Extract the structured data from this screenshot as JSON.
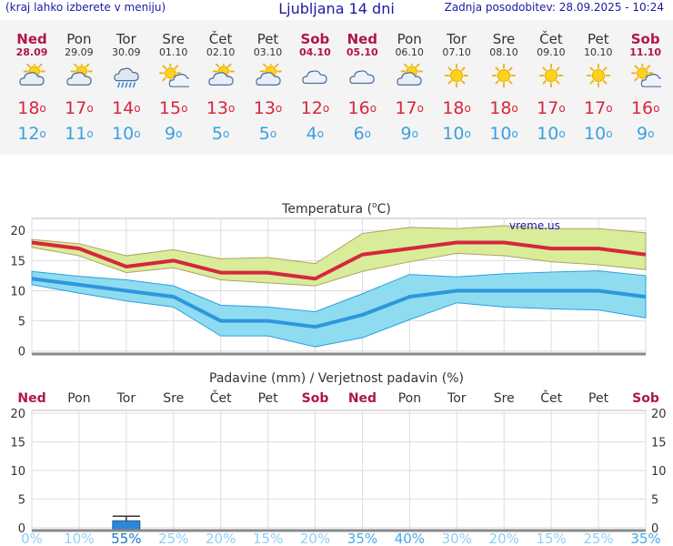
{
  "header": {
    "menu_hint": "(kraj lahko izberete v meniju)",
    "title": "Ljubljana 14 dni",
    "updated": "Zadnja posodobitev: 28.09.2025 - 10:24"
  },
  "days": [
    {
      "name": "Ned",
      "date": "28.09",
      "weekend": true,
      "icon": "partly-cloudy-icon",
      "max": "18",
      "min": "12"
    },
    {
      "name": "Pon",
      "date": "29.09",
      "weekend": false,
      "icon": "partly-cloudy-icon",
      "max": "17",
      "min": "11"
    },
    {
      "name": "Tor",
      "date": "30.09",
      "weekend": false,
      "icon": "rain-icon",
      "max": "14",
      "min": "10"
    },
    {
      "name": "Sre",
      "date": "01.10",
      "weekend": false,
      "icon": "mostly-sunny-icon",
      "max": "15",
      "min": "9"
    },
    {
      "name": "Čet",
      "date": "02.10",
      "weekend": false,
      "icon": "partly-cloudy-icon",
      "max": "13",
      "min": "5"
    },
    {
      "name": "Pet",
      "date": "03.10",
      "weekend": false,
      "icon": "partly-cloudy-icon",
      "max": "13",
      "min": "5"
    },
    {
      "name": "Sob",
      "date": "04.10",
      "weekend": true,
      "icon": "cloudy-icon",
      "max": "12",
      "min": "4"
    },
    {
      "name": "Ned",
      "date": "05.10",
      "weekend": true,
      "icon": "cloudy-icon",
      "max": "16",
      "min": "6"
    },
    {
      "name": "Pon",
      "date": "06.10",
      "weekend": false,
      "icon": "partly-cloudy-icon",
      "max": "17",
      "min": "9"
    },
    {
      "name": "Tor",
      "date": "07.10",
      "weekend": false,
      "icon": "sunny-icon",
      "max": "18",
      "min": "10"
    },
    {
      "name": "Sre",
      "date": "08.10",
      "weekend": false,
      "icon": "sunny-icon",
      "max": "18",
      "min": "10"
    },
    {
      "name": "Čet",
      "date": "09.10",
      "weekend": false,
      "icon": "sunny-icon",
      "max": "17",
      "min": "10"
    },
    {
      "name": "Pet",
      "date": "10.10",
      "weekend": false,
      "icon": "sunny-icon",
      "max": "17",
      "min": "10"
    },
    {
      "name": "Sob",
      "date": "11.10",
      "weekend": true,
      "icon": "mostly-sunny-icon",
      "max": "16",
      "min": "9"
    }
  ],
  "degree_symbol": "o",
  "colors": {
    "max": "#d7263d",
    "min": "#3aa0e0",
    "weekend": "#b0154c",
    "max_band": "#d8ec9a",
    "min_band": "#8fdcf0",
    "precip_bar": "#2f86d8"
  },
  "chart_data": [
    {
      "type": "line",
      "title": "Temperatura (°C)",
      "title_main": "Temperatura (",
      "title_unit": "C)",
      "watermark": "vreme.us",
      "x": [
        "28.09",
        "29.09",
        "30.09",
        "01.10",
        "02.10",
        "03.10",
        "04.10",
        "05.10",
        "06.10",
        "07.10",
        "08.10",
        "09.10",
        "10.10",
        "11.10"
      ],
      "yticks": [
        0,
        5,
        10,
        15,
        20
      ],
      "ylim": [
        -0.5,
        22
      ],
      "grid": true,
      "series": [
        {
          "name": "max",
          "values": [
            18,
            17,
            14,
            15,
            13,
            13,
            12,
            16,
            17,
            18,
            18,
            17,
            17,
            16
          ]
        },
        {
          "name": "max_upper",
          "values": [
            18.5,
            17.8,
            15.8,
            16.8,
            15.3,
            15.5,
            14.5,
            19.5,
            20.5,
            20.3,
            20.8,
            20.3,
            20.3,
            19.6
          ]
        },
        {
          "name": "max_lower",
          "values": [
            17.2,
            15.8,
            13.0,
            13.8,
            11.8,
            11.3,
            10.8,
            13.2,
            14.8,
            16.2,
            15.8,
            14.8,
            14.3,
            13.5
          ]
        },
        {
          "name": "min",
          "values": [
            12,
            11,
            10,
            9,
            5,
            5,
            4,
            6,
            9,
            10,
            10,
            10,
            10,
            9
          ]
        },
        {
          "name": "min_upper",
          "values": [
            13.2,
            12.4,
            11.8,
            10.8,
            7.6,
            7.3,
            6.5,
            9.5,
            12.7,
            12.3,
            12.8,
            13.1,
            13.3,
            12.5
          ]
        },
        {
          "name": "min_lower",
          "values": [
            11.0,
            9.6,
            8.3,
            7.3,
            2.5,
            2.5,
            0.7,
            2.2,
            5.2,
            8.0,
            7.3,
            7.0,
            6.8,
            5.5
          ]
        }
      ]
    },
    {
      "type": "bar",
      "title": "Padavine (mm) / Verjetnost padavin (%)",
      "categories": [
        "Ned",
        "Pon",
        "Tor",
        "Sre",
        "Čet",
        "Pet",
        "Sob",
        "Ned",
        "Pon",
        "Tor",
        "Sre",
        "Čet",
        "Pet",
        "Sob"
      ],
      "weekend": [
        true,
        false,
        false,
        false,
        false,
        false,
        true,
        true,
        false,
        false,
        false,
        false,
        false,
        true
      ],
      "values": [
        0,
        0,
        1.2,
        0,
        0,
        0,
        0,
        0,
        0,
        0,
        0,
        0,
        0,
        0
      ],
      "error_max": [
        0,
        0,
        2.0,
        0,
        0,
        0,
        0,
        0,
        0,
        0,
        0,
        0,
        0,
        0
      ],
      "probability": [
        "0%",
        "10%",
        "55%",
        "25%",
        "20%",
        "15%",
        "20%",
        "35%",
        "40%",
        "30%",
        "20%",
        "15%",
        "25%",
        "35%"
      ],
      "probability_values": [
        0,
        10,
        55,
        25,
        20,
        15,
        20,
        35,
        40,
        30,
        20,
        15,
        25,
        35
      ],
      "yticks": [
        0,
        5,
        10,
        15,
        20
      ],
      "ylim": [
        -0.5,
        20.5
      ],
      "grid": true
    }
  ]
}
